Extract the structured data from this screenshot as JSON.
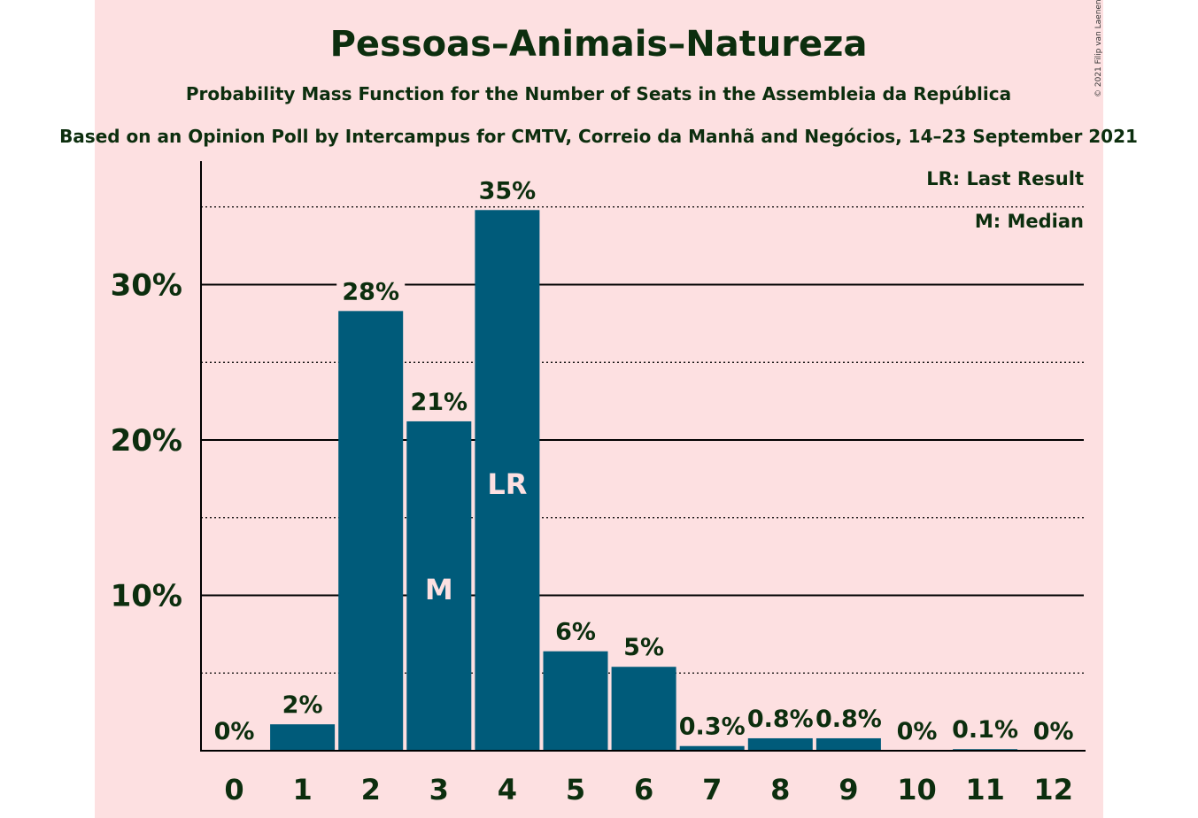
{
  "chart_data": {
    "type": "bar",
    "title": "Pessoas–Animais–Natureza",
    "subtitle": "Probability Mass Function for the Number of Seats in the Assembleia da República",
    "subtitle2": "Based on an Opinion Poll by Intercampus for CMTV, Correio da Manhã and Negócios, 14–23 September 2021",
    "copyright": "© 2021 Filip van Laenen",
    "categories": [
      "0",
      "1",
      "2",
      "3",
      "4",
      "5",
      "6",
      "7",
      "8",
      "9",
      "10",
      "11",
      "12"
    ],
    "values": [
      0,
      1.7,
      28.3,
      21.2,
      34.8,
      6.4,
      5.4,
      0.3,
      0.8,
      0.8,
      0,
      0.1,
      0
    ],
    "value_labels": [
      "0%",
      "2%",
      "28%",
      "21%",
      "35%",
      "6%",
      "5%",
      "0.3%",
      "0.8%",
      "0.8%",
      "0%",
      "0.1%",
      "0%"
    ],
    "bar_markers": {
      "3": "M",
      "4": "LR"
    },
    "yticks": [
      10,
      20,
      30
    ],
    "ytick_labels": [
      "10%",
      "20%",
      "30%"
    ],
    "minor_gridlines": [
      5,
      15,
      25,
      35
    ],
    "ylim": [
      0,
      38
    ],
    "legend": [
      "LR: Last Result",
      "M: Median"
    ],
    "legend_position": "top-right",
    "colors": {
      "bar": "#005b7a",
      "background": "#fde0e1",
      "text": "#0c2e0e",
      "marker_text": "#fde0e1"
    }
  }
}
